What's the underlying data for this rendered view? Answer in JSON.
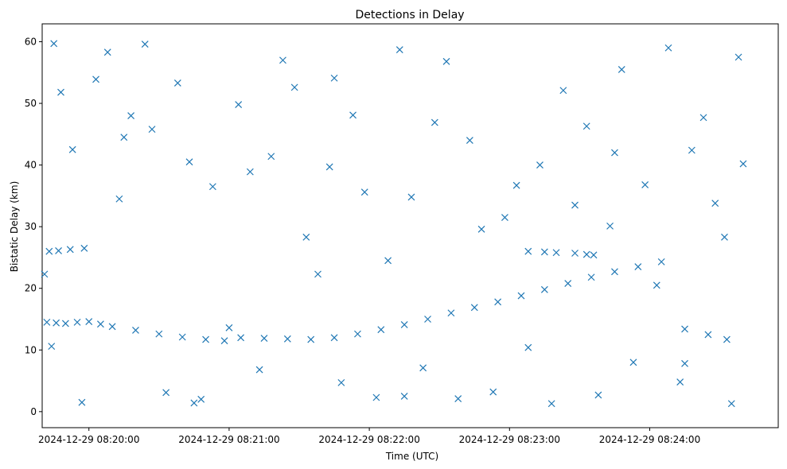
{
  "chart_data": {
    "type": "scatter",
    "title": "Detections in Delay",
    "xlabel": "Time (UTC)",
    "ylabel": "Bistatic Delay (km)",
    "x_ticks": [
      "2024-12-29 08:20:00",
      "2024-12-29 08:21:00",
      "2024-12-29 08:22:00",
      "2024-12-29 08:23:00",
      "2024-12-29 08:24:00"
    ],
    "y_ticks": [
      0,
      10,
      20,
      30,
      40,
      50,
      60
    ],
    "xlim": [
      "2024-12-29 08:19:40",
      "2024-12-29 08:24:55"
    ],
    "ylim": [
      -2.6,
      62.9
    ],
    "marker": "x",
    "color": "#1f77b4",
    "grid": false,
    "series": [
      {
        "x": [
          "2024-12-29 08:19:42",
          "2024-12-29 08:19:46",
          "2024-12-29 08:19:50",
          "2024-12-29 08:19:55",
          "2024-12-29 08:20:00",
          "2024-12-29 08:20:05",
          "2024-12-29 08:20:10",
          "2024-12-29 08:20:20",
          "2024-12-29 08:20:30",
          "2024-12-29 08:20:40",
          "2024-12-29 08:20:50",
          "2024-12-29 08:20:58",
          "2024-12-29 08:21:05",
          "2024-12-29 08:21:15",
          "2024-12-29 08:21:25",
          "2024-12-29 08:21:35",
          "2024-12-29 08:21:45",
          "2024-12-29 08:21:55",
          "2024-12-29 08:22:05",
          "2024-12-29 08:22:15",
          "2024-12-29 08:22:25",
          "2024-12-29 08:22:35",
          "2024-12-29 08:22:45",
          "2024-12-29 08:22:55",
          "2024-12-29 08:23:05",
          "2024-12-29 08:23:15",
          "2024-12-29 08:23:25",
          "2024-12-29 08:23:35",
          "2024-12-29 08:23:45",
          "2024-12-29 08:23:55",
          "2024-12-29 08:24:05",
          "2024-12-29 08:24:15",
          "2024-12-29 08:24:25",
          "2024-12-29 08:24:33"
        ],
        "y": [
          14.5,
          14.4,
          14.3,
          14.5,
          14.6,
          14.2,
          13.8,
          13.2,
          12.6,
          12.1,
          11.7,
          11.5,
          12.0,
          11.9,
          11.8,
          11.7,
          12.0,
          12.6,
          13.3,
          14.1,
          15.0,
          16.0,
          16.9,
          17.8,
          18.8,
          19.8,
          20.8,
          21.8,
          22.7,
          23.5,
          24.3,
          13.4,
          12.5,
          11.7
        ]
      },
      {
        "x": [
          "2024-12-29 08:19:43",
          "2024-12-29 08:19:47",
          "2024-12-29 08:19:52",
          "2024-12-29 08:19:58",
          "2024-12-29 08:23:08",
          "2024-12-29 08:23:15",
          "2024-12-29 08:23:20",
          "2024-12-29 08:23:28",
          "2024-12-29 08:23:33",
          "2024-12-29 08:23:36"
        ],
        "y": [
          26.0,
          26.1,
          26.3,
          26.5,
          26.0,
          25.9,
          25.8,
          25.7,
          25.5,
          25.4
        ]
      },
      {
        "x": [
          "2024-12-29 08:19:41",
          "2024-12-29 08:19:44",
          "2024-12-29 08:19:48",
          "2024-12-29 08:19:53",
          "2024-12-29 08:19:57",
          "2024-12-29 08:20:03",
          "2024-12-29 08:20:08",
          "2024-12-29 08:20:13",
          "2024-12-29 08:20:18",
          "2024-12-29 08:20:24",
          "2024-12-29 08:20:27",
          "2024-12-29 08:20:33",
          "2024-12-29 08:20:38",
          "2024-12-29 08:20:43",
          "2024-12-29 08:20:48",
          "2024-12-29 08:20:53",
          "2024-12-29 08:21:00",
          "2024-12-29 08:21:04",
          "2024-12-29 08:21:09",
          "2024-12-29 08:21:13",
          "2024-12-29 08:21:18",
          "2024-12-29 08:21:23",
          "2024-12-29 08:21:28",
          "2024-12-29 08:21:33",
          "2024-12-29 08:21:38",
          "2024-12-29 08:21:43",
          "2024-12-29 08:21:48",
          "2024-12-29 08:21:53",
          "2024-12-29 08:21:58",
          "2024-12-29 08:22:03",
          "2024-12-29 08:22:08",
          "2024-12-29 08:22:13",
          "2024-12-29 08:22:18",
          "2024-12-29 08:22:23",
          "2024-12-29 08:22:28",
          "2024-12-29 08:22:33",
          "2024-12-29 08:22:38",
          "2024-12-29 08:22:43",
          "2024-12-29 08:22:48",
          "2024-12-29 08:22:53",
          "2024-12-29 08:22:58",
          "2024-12-29 08:23:03",
          "2024-12-29 08:23:08",
          "2024-12-29 08:23:13",
          "2024-12-29 08:23:18",
          "2024-12-29 08:23:23",
          "2024-12-29 08:23:28",
          "2024-12-29 08:23:33",
          "2024-12-29 08:23:38",
          "2024-12-29 08:23:43",
          "2024-12-29 08:23:48",
          "2024-12-29 08:23:53",
          "2024-12-29 08:23:58",
          "2024-12-29 08:24:03",
          "2024-12-29 08:24:08",
          "2024-12-29 08:24:13",
          "2024-12-29 08:24:18",
          "2024-12-29 08:24:23",
          "2024-12-29 08:24:28",
          "2024-12-29 08:24:32",
          "2024-12-29 08:24:35",
          "2024-12-29 08:24:38",
          "2024-12-29 08:24:40",
          "2024-12-29 08:19:45",
          "2024-12-29 08:20:15",
          "2024-12-29 08:20:45",
          "2024-12-29 08:21:45",
          "2024-12-29 08:22:15",
          "2024-12-29 08:23:45",
          "2024-12-29 08:24:15"
        ],
        "y": [
          22.3,
          10.6,
          51.8,
          42.5,
          1.5,
          53.9,
          58.3,
          34.5,
          48.0,
          59.6,
          45.8,
          3.1,
          53.3,
          40.5,
          2.0,
          36.5,
          13.6,
          49.8,
          38.9,
          6.8,
          41.4,
          57.0,
          52.6,
          28.3,
          22.3,
          39.7,
          4.7,
          48.1,
          35.6,
          2.3,
          24.5,
          58.7,
          34.8,
          7.1,
          46.9,
          56.8,
          2.1,
          44.0,
          29.6,
          3.2,
          31.5,
          36.7,
          10.4,
          40.0,
          1.3,
          52.1,
          33.5,
          46.3,
          2.7,
          30.1,
          55.5,
          8.0,
          36.8,
          20.5,
          59.0,
          4.8,
          42.4,
          47.7,
          33.8,
          28.3,
          1.3,
          57.5,
          40.2,
          59.7,
          44.5,
          1.4,
          54.1,
          2.5,
          42.0,
          7.8
        ]
      }
    ]
  }
}
